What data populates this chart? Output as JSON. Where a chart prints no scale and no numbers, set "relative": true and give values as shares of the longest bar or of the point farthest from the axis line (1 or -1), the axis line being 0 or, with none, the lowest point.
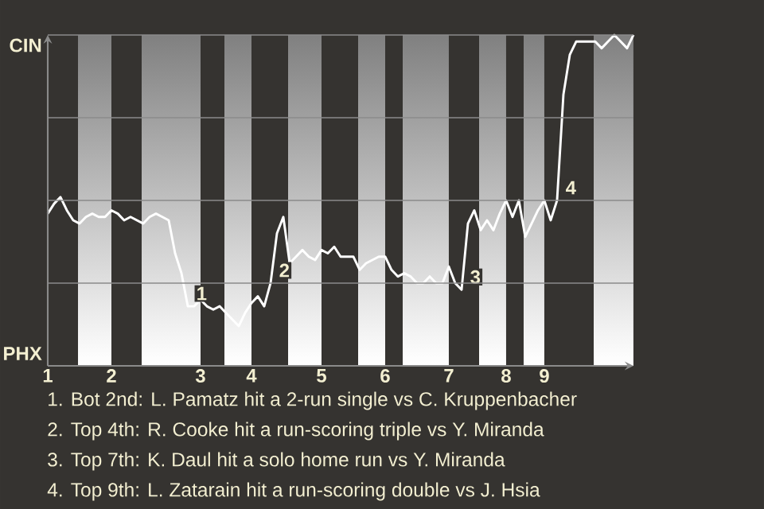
{
  "chart_data": {
    "type": "line",
    "relative": true,
    "categories": [
      "1",
      null,
      null,
      null,
      null,
      null,
      null,
      null,
      null,
      null,
      "2",
      null,
      null,
      null,
      null,
      null,
      null,
      null,
      null,
      null,
      null,
      null,
      null,
      null,
      "3",
      null,
      null,
      null,
      null,
      null,
      null,
      null,
      "4",
      null,
      null,
      null,
      null,
      null,
      null,
      null,
      null,
      null,
      null,
      "5",
      null,
      null,
      null,
      null,
      null,
      null,
      null,
      null,
      null,
      "6",
      null,
      null,
      null,
      null,
      null,
      null,
      null,
      null,
      null,
      "7",
      null,
      null,
      null,
      null,
      null,
      null,
      null,
      null,
      "8",
      null,
      null,
      null,
      null,
      null,
      "9",
      null,
      null,
      null,
      null,
      null,
      null,
      null,
      null,
      null,
      null,
      null,
      null,
      null,
      null
    ],
    "series": [
      {
        "color": "#ffffff",
        "values": [
          0.46,
          0.49,
          0.51,
          0.47,
          0.44,
          0.43,
          0.45,
          0.46,
          0.45,
          0.45,
          0.47,
          0.46,
          0.44,
          0.45,
          0.44,
          0.43,
          0.45,
          0.46,
          0.45,
          0.44,
          0.34,
          0.28,
          0.18,
          0.18,
          0.2,
          0.18,
          0.17,
          0.18,
          0.16,
          0.14,
          0.12,
          0.16,
          0.19,
          0.21,
          0.18,
          0.25,
          0.4,
          0.45,
          0.31,
          0.33,
          0.35,
          0.33,
          0.32,
          0.35,
          0.34,
          0.36,
          0.33,
          0.33,
          0.33,
          0.29,
          0.31,
          0.32,
          0.33,
          0.33,
          0.29,
          0.27,
          0.28,
          0.27,
          0.25,
          0.25,
          0.27,
          0.25,
          0.25,
          0.3,
          0.25,
          0.23,
          0.43,
          0.47,
          0.41,
          0.44,
          0.41,
          0.46,
          0.5,
          0.45,
          0.5,
          0.39,
          0.43,
          0.47,
          0.5,
          0.44,
          0.5,
          0.82,
          0.94,
          0.98,
          0.98,
          0.98,
          0.98,
          0.96,
          0.98,
          1.0,
          0.98,
          0.96,
          1.0
        ]
      }
    ],
    "grid": "y",
    "annotations": [
      "CIN",
      "PHX",
      "1",
      "2",
      "3",
      "4",
      "1. Bot 2nd: L. Pamatz hit a 2-run single vs C. Kruppenbacher",
      "2. Top 4th: R. Cooke hit a run-scoring triple vs Y. Miranda",
      "3. Top 7th: K. Daul hit a solo home run vs Y. Miranda",
      "4. Top 9th: L. Zatarain hit a run-scoring double vs J. Hsia"
    ]
  }
}
